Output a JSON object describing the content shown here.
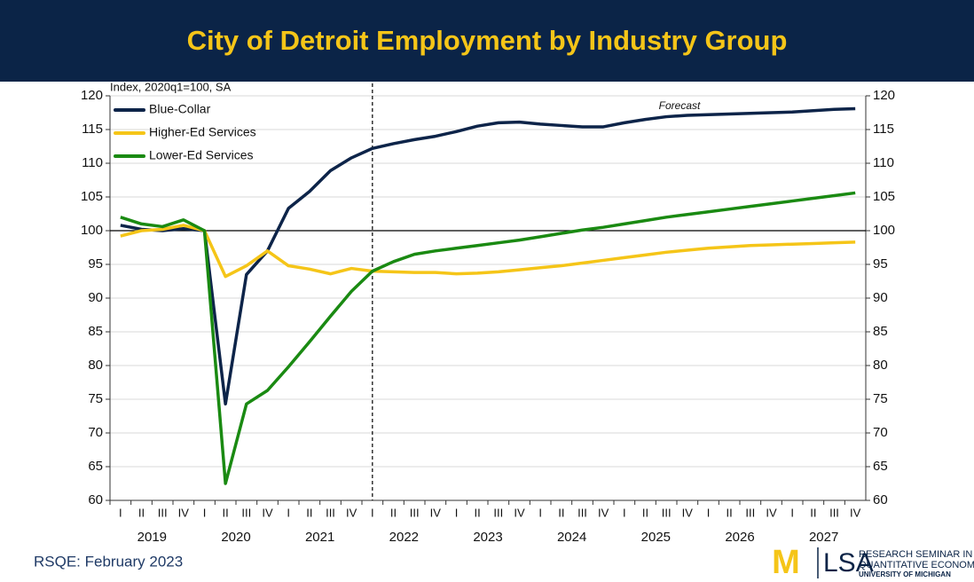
{
  "chart_data": {
    "type": "line",
    "title": "City of Detroit Employment by Industry Group",
    "ylabel": "Index, 2020q1=100, SA",
    "annotation": "Forecast",
    "forecast_start_index": 12,
    "reference_line": 100,
    "categories": [
      "I",
      "II",
      "III",
      "IV",
      "I",
      "II",
      "III",
      "IV",
      "I",
      "II",
      "III",
      "IV",
      "I",
      "II",
      "III",
      "IV",
      "I",
      "II",
      "III",
      "IV",
      "I",
      "II",
      "III",
      "IV",
      "I",
      "II",
      "III",
      "IV",
      "I",
      "II",
      "III",
      "IV",
      "I",
      "II",
      "III",
      "IV"
    ],
    "years": [
      "2019",
      "2020",
      "2021",
      "2022",
      "2023",
      "2024",
      "2025",
      "2026",
      "2027"
    ],
    "ylim": [
      60,
      120
    ],
    "yticks": [
      60,
      65,
      70,
      75,
      80,
      85,
      90,
      95,
      100,
      105,
      110,
      115,
      120
    ],
    "y2lim": [
      60,
      120
    ],
    "y2ticks": [
      60,
      65,
      70,
      75,
      80,
      85,
      90,
      95,
      100,
      105,
      110,
      115,
      120
    ],
    "grid": true,
    "legend": "upper left",
    "series": [
      {
        "name": "Blue-Collar",
        "color": "#0d2449",
        "values": [
          100.8,
          100.2,
          100,
          100.3,
          100,
          74.3,
          93.5,
          97,
          103.3,
          105.8,
          108.9,
          110.8,
          112.2,
          112.9,
          113.5,
          114,
          114.7,
          115.5,
          116,
          116.1,
          115.8,
          115.6,
          115.4,
          115.4,
          116,
          116.5,
          116.9,
          117.1,
          117.2,
          117.3,
          117.4,
          117.5,
          117.6,
          117.8,
          118,
          118.1
        ]
      },
      {
        "name": "Higher-Ed Services",
        "color": "#f5c518",
        "values": [
          99.2,
          100,
          100.2,
          100.8,
          100,
          93.2,
          94.8,
          97,
          94.8,
          94.3,
          93.6,
          94.4,
          94,
          93.9,
          93.8,
          93.8,
          93.6,
          93.7,
          93.9,
          94.2,
          94.5,
          94.8,
          95.2,
          95.6,
          96,
          96.4,
          96.8,
          97.1,
          97.4,
          97.6,
          97.8,
          97.9,
          98,
          98.1,
          98.2,
          98.3
        ]
      },
      {
        "name": "Lower-Ed Services",
        "color": "#1a8a12",
        "values": [
          102,
          101,
          100.6,
          101.6,
          100,
          62.5,
          74.3,
          76.3,
          79.8,
          83.5,
          87.3,
          91,
          94,
          95.4,
          96.5,
          97,
          97.4,
          97.8,
          98.2,
          98.6,
          99.1,
          99.6,
          100.1,
          100.5,
          101,
          101.5,
          102,
          102.4,
          102.8,
          103.2,
          103.6,
          104,
          104.4,
          104.8,
          105.2,
          105.6
        ]
      }
    ]
  },
  "footer": {
    "source": "RSQE: February 2023"
  },
  "branding": {
    "m": "M",
    "lsa": "LSA",
    "line1": "RESEARCH SEMINAR IN",
    "line2": "QUANTITATIVE ECONOMIC",
    "line3": "UNIVERSITY OF MICHIGAN"
  }
}
